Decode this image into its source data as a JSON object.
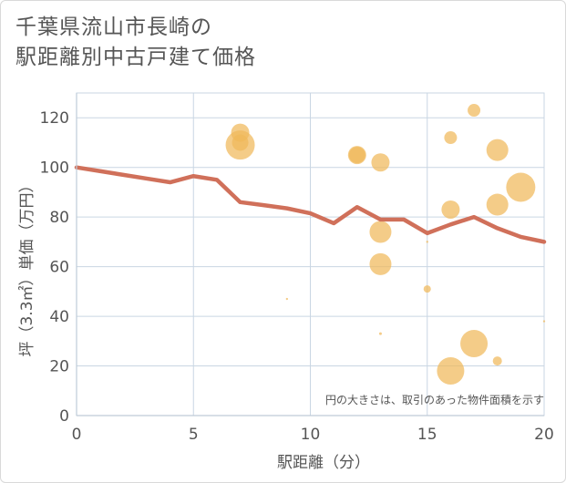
{
  "title_lines": [
    "千葉県流山市長崎の",
    "駅距離別中古戸建て価格"
  ],
  "chart_data": {
    "type": "scatter",
    "title": "千葉県流山市長崎の駅距離別中古戸建て価格",
    "xlabel": "駅距離（分）",
    "ylabel": "坪（3.3㎡）単価（万円）",
    "xlim": [
      0,
      20
    ],
    "ylim": [
      0,
      130
    ],
    "xticks": [
      0,
      5,
      10,
      15,
      20
    ],
    "yticks": [
      0,
      20,
      40,
      60,
      80,
      100,
      120
    ],
    "grid": true,
    "note": "円の大きさは、取引のあった物件面積を示す",
    "colors": {
      "bubble": "#f0b95a",
      "line": "#d0705a",
      "grid": "#c9d6e3",
      "text": "#555555"
    },
    "bubbles": [
      {
        "x": 7,
        "y": 109,
        "size": 16
      },
      {
        "x": 7,
        "y": 114,
        "size": 10
      },
      {
        "x": 7,
        "y": 110,
        "size": 9
      },
      {
        "x": 9,
        "y": 47,
        "size": 1.2
      },
      {
        "x": 12,
        "y": 105,
        "size": 10
      },
      {
        "x": 12,
        "y": 105,
        "size": 9
      },
      {
        "x": 13,
        "y": 102,
        "size": 10
      },
      {
        "x": 13,
        "y": 74,
        "size": 12
      },
      {
        "x": 13,
        "y": 61,
        "size": 12
      },
      {
        "x": 13,
        "y": 33,
        "size": 1.5
      },
      {
        "x": 15,
        "y": 70,
        "size": 1.2
      },
      {
        "x": 15,
        "y": 51,
        "size": 4
      },
      {
        "x": 16,
        "y": 112,
        "size": 7
      },
      {
        "x": 16,
        "y": 83,
        "size": 10
      },
      {
        "x": 16,
        "y": 18,
        "size": 15
      },
      {
        "x": 17,
        "y": 123,
        "size": 7
      },
      {
        "x": 17,
        "y": 29,
        "size": 15
      },
      {
        "x": 18,
        "y": 107,
        "size": 12
      },
      {
        "x": 18,
        "y": 85,
        "size": 12
      },
      {
        "x": 18,
        "y": 22,
        "size": 5
      },
      {
        "x": 19,
        "y": 92,
        "size": 16
      },
      {
        "x": 20,
        "y": 38,
        "size": 1.2
      }
    ],
    "trend_line": {
      "x": [
        0,
        1,
        2,
        3,
        4,
        5,
        6,
        7,
        8,
        9,
        10,
        11,
        12,
        13,
        14,
        15,
        16,
        17,
        18,
        19,
        20
      ],
      "y": [
        100,
        98.5,
        97,
        95.5,
        94,
        96.5,
        95,
        86,
        84.8,
        83.5,
        81.5,
        77.5,
        84,
        79,
        79,
        73.5,
        77,
        80,
        75.5,
        72,
        70
      ]
    }
  }
}
